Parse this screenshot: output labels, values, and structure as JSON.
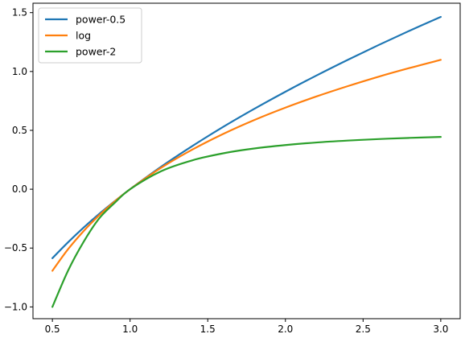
{
  "chart_data": {
    "type": "line",
    "title": "",
    "xlabel": "",
    "ylabel": "",
    "xlim": [
      0.375,
      3.125
    ],
    "ylim": [
      -1.1,
      1.58
    ],
    "grid": false,
    "legend_position": "top-left",
    "x_ticks": [
      "0.5",
      "1.0",
      "1.5",
      "2.0",
      "2.5",
      "3.0"
    ],
    "y_ticks": [
      "-1.0",
      "-0.5",
      "0.0",
      "0.5",
      "1.0",
      "1.5"
    ],
    "x": [
      0.5,
      0.6,
      0.7,
      0.8,
      0.9,
      1.0,
      1.2,
      1.4,
      1.6,
      1.8,
      2.0,
      2.2,
      2.4,
      2.6,
      2.8,
      3.0
    ],
    "series": [
      {
        "name": "power-0.5",
        "color": "#1f77b4",
        "values": [
          -0.586,
          -0.452,
          -0.327,
          -0.211,
          -0.103,
          0.0,
          0.191,
          0.366,
          0.53,
          0.683,
          0.828,
          0.966,
          1.098,
          1.225,
          1.347,
          1.464
        ]
      },
      {
        "name": "log",
        "color": "#ff7f0e",
        "values": [
          -0.693,
          -0.511,
          -0.357,
          -0.223,
          -0.105,
          0.0,
          0.182,
          0.336,
          0.47,
          0.588,
          0.693,
          0.788,
          0.875,
          0.956,
          1.03,
          1.099
        ]
      },
      {
        "name": "power-2",
        "color": "#2ca02c",
        "values": [
          -1.0,
          -0.694,
          -0.449,
          -0.25,
          -0.117,
          0.0,
          0.153,
          0.245,
          0.305,
          0.346,
          0.375,
          0.397,
          0.413,
          0.426,
          0.436,
          0.444
        ]
      }
    ]
  }
}
